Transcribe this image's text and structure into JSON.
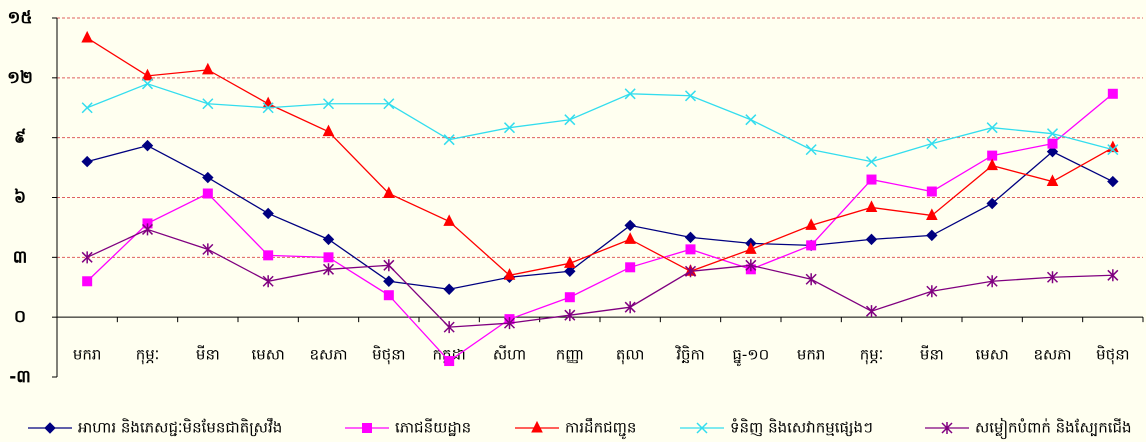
{
  "chart_data": {
    "type": "line",
    "categories": [
      "មករា",
      "កុម្ភៈ",
      "មីនា",
      "មេសា",
      "ឧសភា",
      "មិថុនា",
      "កក្កដា",
      "សីហា",
      "កញ្ញា",
      "តុលា",
      "វិច្ឆិកា",
      "ធ្នូ-១០",
      "មករា",
      "កុម្ភៈ",
      "មីនា",
      "មេសា",
      "ឧសភា",
      "មិថុនា"
    ],
    "series": [
      {
        "name": "អាហារ និងភេសជ្ជៈមិនមែនជាតិស្រវឹង",
        "color": "#000080",
        "marker": "diamond",
        "values": [
          7.8,
          8.6,
          7.0,
          5.2,
          3.9,
          1.8,
          1.4,
          2.0,
          2.3,
          4.6,
          4.0,
          3.7,
          3.6,
          3.9,
          4.1,
          5.7,
          8.3,
          6.8
        ]
      },
      {
        "name": "ភោជនីយដ្ឋាន",
        "color": "#ff00ff",
        "marker": "square",
        "values": [
          1.8,
          4.7,
          6.2,
          3.1,
          3.0,
          1.1,
          -2.2,
          -0.1,
          1.0,
          2.5,
          3.4,
          2.4,
          3.6,
          6.9,
          6.3,
          8.1,
          8.7,
          11.2
        ]
      },
      {
        "name": "ការដឹកជញ្ជូន",
        "color": "#ff0000",
        "marker": "triangle",
        "values": [
          14.0,
          12.1,
          12.4,
          10.7,
          9.3,
          6.2,
          4.8,
          2.1,
          2.7,
          3.9,
          2.3,
          3.4,
          4.6,
          5.5,
          5.1,
          7.6,
          6.8,
          8.5
        ]
      },
      {
        "name": "ទំនិញ និងសេវាកម្មផ្សេងៗ",
        "color": "#33ddee",
        "marker": "x",
        "values": [
          10.5,
          11.7,
          10.7,
          10.5,
          10.7,
          10.7,
          8.9,
          9.5,
          9.9,
          11.2,
          11.1,
          9.9,
          8.4,
          7.8,
          8.7,
          9.5,
          9.2,
          8.4
        ]
      },
      {
        "name": "សម្លៀកបំពាក់ និងស្បែកជើង",
        "color": "#800080",
        "marker": "star",
        "values": [
          3.0,
          4.4,
          3.4,
          1.8,
          2.4,
          2.6,
          -0.5,
          -0.3,
          0.1,
          0.5,
          2.3,
          2.6,
          1.9,
          0.3,
          1.3,
          1.8,
          2.0,
          2.1
        ]
      }
    ],
    "ylim": [
      -3,
      15
    ],
    "yticks": [
      {
        "value": -3,
        "label": "-៣"
      },
      {
        "value": 0,
        "label": "០"
      },
      {
        "value": 3,
        "label": "៣"
      },
      {
        "value": 6,
        "label": "៦"
      },
      {
        "value": 9,
        "label": "៩"
      },
      {
        "value": 12,
        "label": "១២"
      },
      {
        "value": 15,
        "label": "១៥"
      }
    ],
    "grid": true,
    "legend": "bottom"
  }
}
